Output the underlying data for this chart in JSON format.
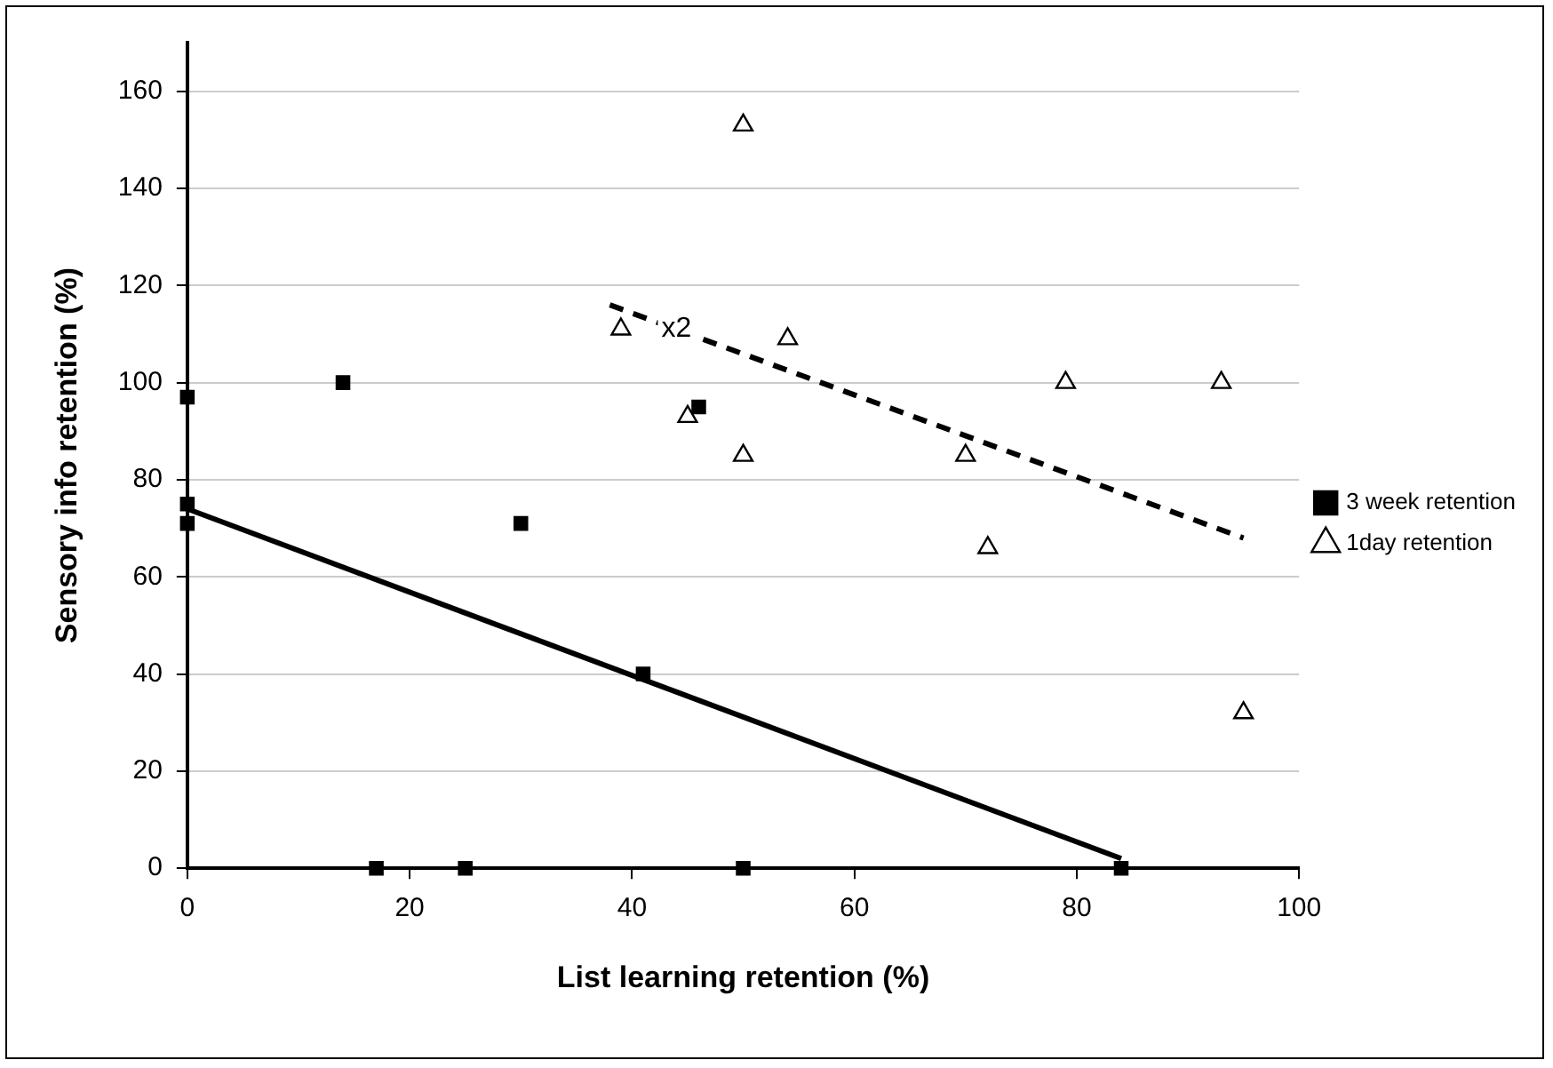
{
  "chart_data": {
    "type": "scatter",
    "xlabel": "List learning retention (%)",
    "ylabel": "Sensory info retention (%)",
    "xlim": [
      0,
      100
    ],
    "xticks": [
      0,
      20,
      40,
      60,
      80,
      100
    ],
    "ylim": [
      0,
      170
    ],
    "yticks": [
      0,
      20,
      40,
      60,
      80,
      100,
      120,
      140,
      160
    ],
    "grid": "y",
    "legend": "right",
    "series": [
      {
        "name": "3 week retention",
        "color": "#000000",
        "marker": "square",
        "x": [
          0,
          0,
          0,
          14,
          17,
          25,
          30,
          41,
          46,
          50,
          84
        ],
        "values": [
          97,
          75,
          71,
          100,
          0,
          0,
          71,
          40,
          95,
          0,
          0
        ]
      },
      {
        "name": "1day retention",
        "color": "#000000",
        "marker": "triangle",
        "x": [
          39,
          45,
          50,
          50,
          54,
          70,
          72,
          79,
          93,
          95
        ],
        "values": [
          111,
          93,
          153,
          85,
          109,
          85,
          66,
          100,
          100,
          32
        ]
      },
      {
        "type": "line",
        "color": "#000000",
        "line_style": "solid",
        "marker": "none",
        "x": [
          0,
          84
        ],
        "values": [
          74,
          2
        ]
      },
      {
        "type": "line",
        "color": "#000000",
        "line_style": "dashed",
        "marker": "none",
        "x": [
          38,
          95
        ],
        "values": [
          116,
          68
        ]
      }
    ],
    "annotations": [
      {
        "text": "x2",
        "x": 42,
        "y": 111
      }
    ]
  }
}
